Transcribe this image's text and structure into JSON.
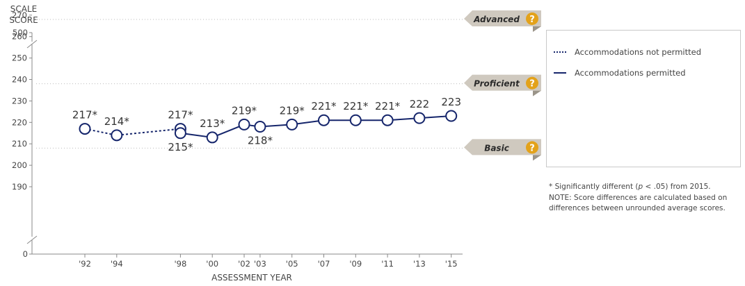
{
  "chart_data": {
    "type": "line",
    "y_axis_title_line1": "SCALE",
    "y_axis_title_line2": "SCORE",
    "xlabel": "ASSESSMENT YEAR",
    "ylim": [
      185,
      275
    ],
    "y_break_labels": {
      "top": "500",
      "bottom": "0"
    },
    "y_ticks": [
      190,
      200,
      210,
      220,
      230,
      240,
      250,
      260,
      270
    ],
    "x_ticks": [
      {
        "label": "'92",
        "year": 1992
      },
      {
        "label": "'94",
        "year": 1994
      },
      {
        "label": "'98",
        "year": 1998
      },
      {
        "label": "'00",
        "year": 2000
      },
      {
        "label": "'02",
        "year": 2002
      },
      {
        "label": "'03",
        "year": 2003
      },
      {
        "label": "'05",
        "year": 2005
      },
      {
        "label": "'07",
        "year": 2007
      },
      {
        "label": "'09",
        "year": 2009
      },
      {
        "label": "'11",
        "year": 2011
      },
      {
        "label": "'13",
        "year": 2013
      },
      {
        "label": "'15",
        "year": 2015
      }
    ],
    "series": [
      {
        "name": "Accommodations not permitted",
        "style": "dotted",
        "color": "#15256b",
        "points": [
          {
            "year": 1992,
            "value": 217,
            "label": "217*",
            "label_pos": "above"
          },
          {
            "year": 1994,
            "value": 214,
            "label": "214*",
            "label_pos": "above"
          },
          {
            "year": 1998,
            "value": 217,
            "label": "217*",
            "label_pos": "above"
          }
        ]
      },
      {
        "name": "Accommodations permitted",
        "style": "solid",
        "color": "#15256b",
        "points": [
          {
            "year": 1998,
            "value": 215,
            "label": "215*",
            "label_pos": "below"
          },
          {
            "year": 2000,
            "value": 213,
            "label": "213*",
            "label_pos": "above"
          },
          {
            "year": 2002,
            "value": 219,
            "label": "219*",
            "label_pos": "above"
          },
          {
            "year": 2003,
            "value": 218,
            "label": "218*",
            "label_pos": "below"
          },
          {
            "year": 2005,
            "value": 219,
            "label": "219*",
            "label_pos": "above"
          },
          {
            "year": 2007,
            "value": 221,
            "label": "221*",
            "label_pos": "above"
          },
          {
            "year": 2009,
            "value": 221,
            "label": "221*",
            "label_pos": "above"
          },
          {
            "year": 2011,
            "value": 221,
            "label": "221*",
            "label_pos": "above"
          },
          {
            "year": 2013,
            "value": 222,
            "label": "222",
            "label_pos": "above"
          },
          {
            "year": 2015,
            "value": 223,
            "label": "223",
            "label_pos": "above"
          }
        ]
      }
    ],
    "benchmarks": [
      {
        "name": "Advanced",
        "value": 268
      },
      {
        "name": "Proficient",
        "value": 238
      },
      {
        "name": "Basic",
        "value": 208
      }
    ],
    "legend_placement": "right"
  },
  "colors": {
    "series": "#15256b",
    "benchmark_tag": "#cfc9bf",
    "help_icon": "#e3a21a",
    "gridline": "#bbbbbb"
  },
  "icons": {
    "benchmark_help": "question-mark-icon"
  },
  "help_icon_glyph": "?",
  "legend": {
    "items": [
      {
        "label": "Accommodations not permitted",
        "style": "dotted"
      },
      {
        "label": "Accommodations permitted",
        "style": "solid"
      }
    ]
  },
  "notes": {
    "significance_prefix": "* Significantly different (",
    "significance_p": "p",
    "significance_suffix": " < .05) from 2015.",
    "note": "NOTE: Score differences are calculated based on differences between unrounded average scores."
  }
}
